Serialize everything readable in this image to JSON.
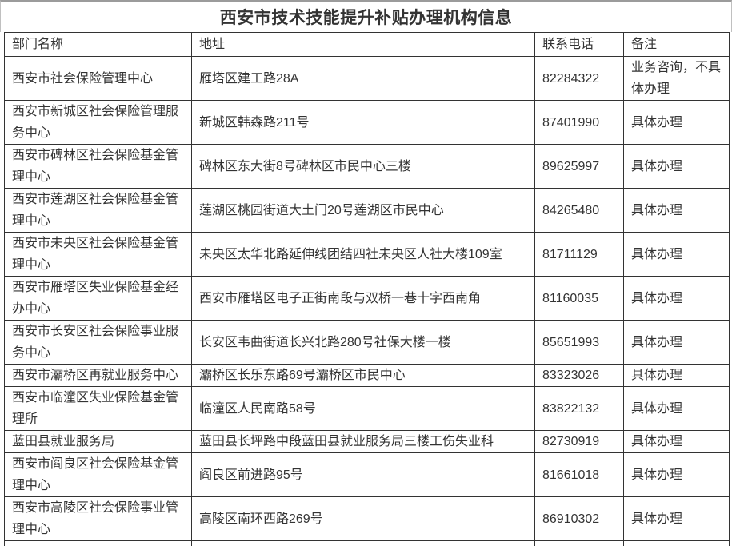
{
  "title": "西安市技术技能提升补贴办理机构信息",
  "table": {
    "headers": [
      "部门名称",
      "地址",
      "联系电话",
      "备注"
    ],
    "rows": [
      {
        "dept": "西安市社会保险管理中心",
        "address": "雁塔区建工路28A",
        "phone": "82284322",
        "note": "业务咨询，不具体办理"
      },
      {
        "dept": "西安市新城区社会保险管理服务中心",
        "address": "新城区韩森路211号",
        "phone": "87401990",
        "note": "具体办理"
      },
      {
        "dept": "西安市碑林区社会保险基金管理中心",
        "address": "碑林区东大街8号碑林区市民中心三楼",
        "phone": "89625997",
        "note": "具体办理"
      },
      {
        "dept": "西安市莲湖区社会保险基金管理中心",
        "address": "莲湖区桃园街道大土门20号莲湖区市民中心",
        "phone": "84265480",
        "note": "具体办理"
      },
      {
        "dept": "西安市未央区社会保险基金管理中心",
        "address": "未央区太华北路延伸线团结四社未央区人社大楼109室",
        "phone": "81711129",
        "note": "具体办理"
      },
      {
        "dept": "西安市雁塔区失业保险基金经办中心",
        "address": "西安市雁塔区电子正街南段与双桥一巷十字西南角",
        "phone": "81160035",
        "note": "具体办理"
      },
      {
        "dept": "西安市长安区社会保险事业服务中心",
        "address": "长安区韦曲街道长兴北路280号社保大楼一楼",
        "phone": "85651993",
        "note": "具体办理"
      },
      {
        "dept": "西安市灞桥区再就业服务中心",
        "address": "灞桥区长乐东路69号灞桥区市民中心",
        "phone": "83323026",
        "note": "具体办理"
      },
      {
        "dept": "西安市临潼区失业保险基金管理所",
        "address": "临潼区人民南路58号",
        "phone": "83822132",
        "note": "具体办理"
      },
      {
        "dept": "蓝田县就业服务局",
        "address": "蓝田县长坪路中段蓝田县就业服务局三楼工伤失业科",
        "phone": "82730919",
        "note": "具体办理"
      },
      {
        "dept": "西安市阎良区社会保险基金管理中心",
        "address": "阎良区前进路95号",
        "phone": "81661018",
        "note": "具体办理"
      },
      {
        "dept": "西安市高陵区社会保险事业管理中心",
        "address": "高陵区南环西路269号",
        "phone": "86910302",
        "note": "具体办理"
      }
    ]
  },
  "colors": {
    "text": "#333333",
    "table_border": "#333333",
    "outer_border": "#9b9b9b",
    "background": "#ffffff"
  }
}
